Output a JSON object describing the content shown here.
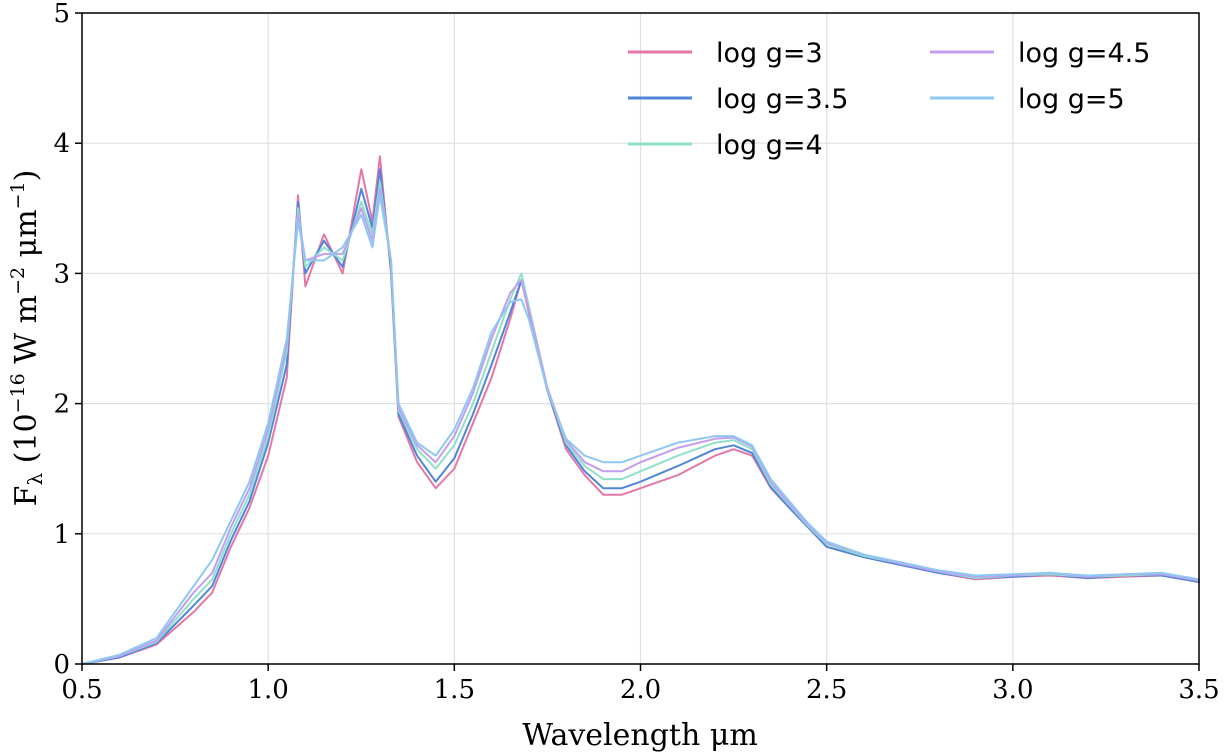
{
  "chart_data": {
    "type": "line",
    "title": "",
    "xlabel": "Wavelength μm",
    "ylabel": "F_λ (10^−16 W m^−2 μm^−1)",
    "ylabel_parts": {
      "prefix": "F",
      "sub": "λ",
      "open": " (10",
      "exp1": "−16",
      "mid1": " W m",
      "exp2": "−2",
      "mid2": " μm",
      "exp3": "−1",
      "close": ")"
    },
    "xlim": [
      0.5,
      3.5
    ],
    "ylim": [
      0,
      5
    ],
    "xticks": [
      0.5,
      1.0,
      1.5,
      2.0,
      2.5,
      3.0,
      3.5
    ],
    "xtick_labels": [
      "0.5",
      "1.0",
      "1.5",
      "2.0",
      "2.5",
      "3.0",
      "3.5"
    ],
    "yticks": [
      0,
      1,
      2,
      3,
      4,
      5
    ],
    "ytick_labels": [
      "0",
      "1",
      "2",
      "3",
      "4",
      "5"
    ],
    "grid": true,
    "legend": {
      "placement": "top-right",
      "columns": 2
    },
    "x": [
      0.5,
      0.6,
      0.7,
      0.8,
      0.85,
      0.9,
      0.95,
      1.0,
      1.05,
      1.08,
      1.1,
      1.15,
      1.2,
      1.25,
      1.28,
      1.3,
      1.33,
      1.35,
      1.4,
      1.45,
      1.5,
      1.55,
      1.6,
      1.65,
      1.68,
      1.7,
      1.75,
      1.8,
      1.85,
      1.9,
      1.95,
      2.0,
      2.1,
      2.2,
      2.25,
      2.3,
      2.35,
      2.4,
      2.45,
      2.5,
      2.6,
      2.7,
      2.8,
      2.9,
      3.0,
      3.1,
      3.2,
      3.3,
      3.4,
      3.5
    ],
    "series": [
      {
        "name": "log g=3",
        "color": "#e377a8",
        "values": [
          0.0,
          0.05,
          0.15,
          0.4,
          0.55,
          0.9,
          1.2,
          1.6,
          2.2,
          3.6,
          2.9,
          3.3,
          3.0,
          3.8,
          3.4,
          3.9,
          3.0,
          1.9,
          1.55,
          1.35,
          1.5,
          1.85,
          2.2,
          2.65,
          2.95,
          2.7,
          2.1,
          1.65,
          1.45,
          1.3,
          1.3,
          1.35,
          1.45,
          1.6,
          1.65,
          1.6,
          1.35,
          1.2,
          1.05,
          0.9,
          0.82,
          0.76,
          0.7,
          0.65,
          0.67,
          0.68,
          0.66,
          0.67,
          0.68,
          0.63
        ]
      },
      {
        "name": "log g=3.5",
        "color": "#4f86d9",
        "values": [
          0.0,
          0.05,
          0.16,
          0.45,
          0.6,
          0.95,
          1.25,
          1.7,
          2.3,
          3.55,
          3.0,
          3.25,
          3.05,
          3.65,
          3.35,
          3.8,
          3.05,
          1.92,
          1.6,
          1.4,
          1.58,
          1.92,
          2.3,
          2.7,
          2.95,
          2.72,
          2.1,
          1.68,
          1.48,
          1.35,
          1.35,
          1.4,
          1.52,
          1.65,
          1.68,
          1.62,
          1.36,
          1.2,
          1.05,
          0.9,
          0.82,
          0.76,
          0.7,
          0.66,
          0.67,
          0.69,
          0.66,
          0.68,
          0.68,
          0.63
        ]
      },
      {
        "name": "log g=4",
        "color": "#8fe0c8",
        "values": [
          0.0,
          0.06,
          0.17,
          0.5,
          0.65,
          1.0,
          1.3,
          1.75,
          2.4,
          3.5,
          3.05,
          3.2,
          3.1,
          3.55,
          3.3,
          3.7,
          3.1,
          1.95,
          1.65,
          1.5,
          1.68,
          2.0,
          2.4,
          2.8,
          3.0,
          2.75,
          2.12,
          1.7,
          1.52,
          1.42,
          1.42,
          1.48,
          1.6,
          1.7,
          1.72,
          1.65,
          1.38,
          1.22,
          1.06,
          0.92,
          0.83,
          0.77,
          0.71,
          0.66,
          0.68,
          0.69,
          0.67,
          0.68,
          0.69,
          0.64
        ]
      },
      {
        "name": "log g=4.5",
        "color": "#c39ef0",
        "values": [
          0.0,
          0.06,
          0.18,
          0.55,
          0.7,
          1.05,
          1.35,
          1.8,
          2.45,
          3.45,
          3.1,
          3.15,
          3.15,
          3.5,
          3.25,
          3.65,
          3.1,
          1.97,
          1.68,
          1.55,
          1.75,
          2.08,
          2.5,
          2.85,
          2.95,
          2.72,
          2.12,
          1.72,
          1.55,
          1.48,
          1.48,
          1.55,
          1.66,
          1.73,
          1.74,
          1.67,
          1.4,
          1.23,
          1.07,
          0.93,
          0.84,
          0.77,
          0.71,
          0.67,
          0.68,
          0.7,
          0.67,
          0.69,
          0.69,
          0.64
        ]
      },
      {
        "name": "log g=5",
        "color": "#8ec8f2",
        "values": [
          0.0,
          0.07,
          0.2,
          0.6,
          0.8,
          1.1,
          1.4,
          1.85,
          2.5,
          3.4,
          3.1,
          3.1,
          3.2,
          3.45,
          3.2,
          3.6,
          3.1,
          2.0,
          1.7,
          1.6,
          1.8,
          2.12,
          2.55,
          2.78,
          2.8,
          2.65,
          2.1,
          1.73,
          1.6,
          1.55,
          1.55,
          1.6,
          1.7,
          1.75,
          1.75,
          1.68,
          1.42,
          1.25,
          1.08,
          0.94,
          0.84,
          0.78,
          0.72,
          0.68,
          0.69,
          0.7,
          0.68,
          0.69,
          0.7,
          0.65
        ]
      }
    ]
  }
}
